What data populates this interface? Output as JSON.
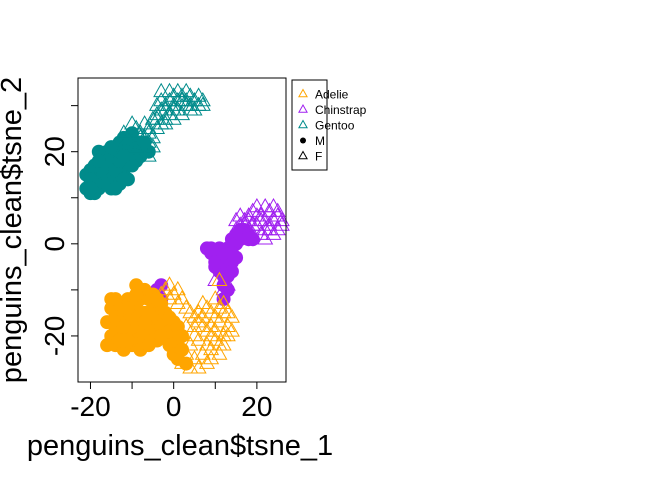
{
  "chart_data": {
    "type": "scatter",
    "title": "",
    "xlabel": "penguins_clean$tsne_1",
    "ylabel": "penguins_clean$tsne_2",
    "xlim": [
      -23,
      27
    ],
    "ylim": [
      -30,
      36
    ],
    "xticks": [
      -20,
      0,
      20
    ],
    "xtick_labels": [
      "-20",
      "0",
      "20"
    ],
    "yticks": [
      -20,
      0,
      20
    ],
    "ytick_labels": [
      "-20",
      "0",
      "20"
    ],
    "grid": false,
    "legend_position": "right",
    "legend": [
      {
        "label": "Adelie",
        "symbol": "triangle",
        "color": "#FFA500"
      },
      {
        "label": "Chinstrap",
        "symbol": "triangle",
        "color": "#A020F0"
      },
      {
        "label": "Gentoo",
        "symbol": "triangle",
        "color": "#008B8B"
      },
      {
        "label": "M",
        "symbol": "circle",
        "color": "#000000"
      },
      {
        "label": "F",
        "symbol": "triangle",
        "color": "#000000"
      }
    ],
    "colors": {
      "Adelie": "#FFA500",
      "Chinstrap": "#A020F0",
      "Gentoo": "#008B8B"
    },
    "series": [
      {
        "name": "Gentoo",
        "group": "M",
        "shape": "circle",
        "color": "#008B8B",
        "points": [
          [
            -20,
            11
          ],
          [
            -20,
            13
          ],
          [
            -21,
            15
          ],
          [
            -20,
            16
          ],
          [
            -19,
            14
          ],
          [
            -18,
            12
          ],
          [
            -18,
            15
          ],
          [
            -17,
            13
          ],
          [
            -17,
            17
          ],
          [
            -16,
            15
          ],
          [
            -15,
            12
          ],
          [
            -15,
            16
          ],
          [
            -15,
            19
          ],
          [
            -14,
            14
          ],
          [
            -14,
            18
          ],
          [
            -13,
            13
          ],
          [
            -13,
            20
          ],
          [
            -12,
            16
          ],
          [
            -12,
            18
          ],
          [
            -11,
            21
          ],
          [
            -11,
            14
          ],
          [
            -10,
            19
          ],
          [
            -10,
            22
          ],
          [
            -9,
            20
          ],
          [
            -13,
            22
          ],
          [
            -16,
            20
          ],
          [
            -18,
            20
          ],
          [
            -17,
            19
          ],
          [
            -12,
            21
          ],
          [
            -11,
            17
          ],
          [
            -10,
            20
          ],
          [
            -9,
            22
          ],
          [
            -8,
            21
          ],
          [
            -8,
            19
          ],
          [
            -6,
            20
          ],
          [
            -7,
            22
          ],
          [
            -14,
            21
          ],
          [
            -12,
            23
          ],
          [
            -10,
            24
          ],
          [
            -19,
            17
          ],
          [
            -20,
            14
          ],
          [
            -21,
            12
          ],
          [
            -17,
            16
          ],
          [
            -15,
            14
          ],
          [
            -13,
            16
          ],
          [
            -16,
            18
          ],
          [
            -14,
            16
          ],
          [
            -12,
            14
          ],
          [
            -11,
            19
          ],
          [
            -9,
            18
          ],
          [
            -8,
            22
          ],
          [
            -13,
            18
          ],
          [
            -15,
            21
          ],
          [
            -18,
            18
          ],
          [
            -19,
            11
          ],
          [
            -20,
            12
          ],
          [
            -16,
            13
          ],
          [
            -14,
            12
          ],
          [
            -10,
            17
          ],
          [
            -12,
            19
          ]
        ]
      },
      {
        "name": "Gentoo",
        "group": "F",
        "shape": "triangle",
        "color": "#008B8B",
        "points": [
          [
            -10,
            22
          ],
          [
            -8,
            24
          ],
          [
            -7,
            26
          ],
          [
            -6,
            25
          ],
          [
            -5,
            27
          ],
          [
            -4,
            28
          ],
          [
            -3,
            29
          ],
          [
            -2,
            30
          ],
          [
            -1,
            31
          ],
          [
            0,
            32
          ],
          [
            1,
            33
          ],
          [
            2,
            32
          ],
          [
            3,
            31
          ],
          [
            4,
            30
          ],
          [
            5,
            29
          ],
          [
            6,
            30
          ],
          [
            7,
            31
          ],
          [
            -4,
            25
          ],
          [
            -2,
            26
          ],
          [
            0,
            27
          ],
          [
            2,
            28
          ],
          [
            3,
            30
          ],
          [
            -6,
            22
          ],
          [
            -5,
            23
          ],
          [
            -3,
            26
          ],
          [
            -1,
            28
          ],
          [
            1,
            29
          ],
          [
            4,
            32
          ],
          [
            5,
            31
          ],
          [
            -8,
            20
          ],
          [
            -9,
            21
          ],
          [
            -6,
            24
          ],
          [
            -4,
            27
          ],
          [
            -2,
            29
          ],
          [
            0,
            30
          ],
          [
            2,
            31
          ],
          [
            -3,
            31
          ],
          [
            -1,
            33
          ],
          [
            1,
            31
          ],
          [
            -7,
            23
          ],
          [
            -5,
            21
          ],
          [
            -6,
            19
          ],
          [
            -4,
            30
          ],
          [
            6,
            32
          ],
          [
            -9,
            25
          ],
          [
            -11,
            23
          ],
          [
            -12,
            24
          ],
          [
            -10,
            26
          ],
          [
            -8,
            23
          ],
          [
            -3,
            33
          ],
          [
            3,
            33
          ],
          [
            0,
            29
          ],
          [
            -2,
            27
          ],
          [
            4,
            29
          ],
          [
            7,
            30
          ]
        ]
      },
      {
        "name": "Chinstrap",
        "group": "M",
        "shape": "circle",
        "color": "#A020F0",
        "points": [
          [
            8,
            -1
          ],
          [
            9,
            -2
          ],
          [
            10,
            -3
          ],
          [
            10,
            -5
          ],
          [
            11,
            -6
          ],
          [
            12,
            -4
          ],
          [
            13,
            -3
          ],
          [
            13,
            -1
          ],
          [
            14,
            0
          ],
          [
            14,
            1
          ],
          [
            15,
            2
          ],
          [
            16,
            3
          ],
          [
            17,
            3
          ],
          [
            18,
            2
          ],
          [
            19,
            1
          ],
          [
            12,
            -7
          ],
          [
            12,
            -9
          ],
          [
            13,
            -10
          ],
          [
            12,
            -12
          ],
          [
            13,
            -5
          ],
          [
            11,
            -1
          ],
          [
            10,
            -2
          ],
          [
            16,
            1
          ],
          [
            15,
            0
          ],
          [
            14,
            -2
          ],
          [
            -3,
            -9
          ],
          [
            -4,
            -10
          ],
          [
            -3,
            -12
          ],
          [
            14,
            -4
          ],
          [
            11,
            -3
          ],
          [
            17,
            2
          ],
          [
            15,
            -3
          ],
          [
            16,
            2
          ],
          [
            18,
            1
          ],
          [
            9,
            -1
          ],
          [
            13,
            -7
          ],
          [
            10,
            -4
          ],
          [
            12,
            -2
          ],
          [
            14,
            -6
          ]
        ]
      },
      {
        "name": "Chinstrap",
        "group": "F",
        "shape": "triangle",
        "color": "#A020F0",
        "points": [
          [
            15,
            3
          ],
          [
            16,
            4
          ],
          [
            17,
            5
          ],
          [
            18,
            6
          ],
          [
            19,
            7
          ],
          [
            20,
            8
          ],
          [
            21,
            6
          ],
          [
            22,
            5
          ],
          [
            23,
            4
          ],
          [
            24,
            5
          ],
          [
            25,
            6
          ],
          [
            26,
            5
          ],
          [
            22,
            8
          ],
          [
            24,
            8
          ],
          [
            20,
            4
          ],
          [
            21,
            2
          ],
          [
            22,
            1
          ],
          [
            23,
            3
          ],
          [
            19,
            4
          ],
          [
            18,
            3
          ],
          [
            25,
            3
          ],
          [
            24,
            2
          ],
          [
            21,
            5
          ],
          [
            23,
            7
          ],
          [
            20,
            6
          ],
          [
            17,
            4
          ],
          [
            15,
            5
          ],
          [
            19,
            2
          ],
          [
            22,
            3
          ],
          [
            26,
            4
          ],
          [
            16,
            6
          ],
          [
            18,
            5
          ],
          [
            25,
            7
          ],
          [
            12,
            -10
          ],
          [
            10,
            -8
          ],
          [
            13,
            -9
          ]
        ]
      },
      {
        "name": "Adelie",
        "group": "M",
        "shape": "circle",
        "color": "#FFA500",
        "points": [
          [
            -16,
            -17
          ],
          [
            -15,
            -14
          ],
          [
            -14,
            -16
          ],
          [
            -14,
            -19
          ],
          [
            -13,
            -13
          ],
          [
            -13,
            -18
          ],
          [
            -12,
            -15
          ],
          [
            -12,
            -20
          ],
          [
            -11,
            -12
          ],
          [
            -11,
            -17
          ],
          [
            -10,
            -14
          ],
          [
            -10,
            -19
          ],
          [
            -10,
            -22
          ],
          [
            -9,
            -13
          ],
          [
            -9,
            -16
          ],
          [
            -9,
            -21
          ],
          [
            -8,
            -12
          ],
          [
            -8,
            -18
          ],
          [
            -8,
            -23
          ],
          [
            -7,
            -15
          ],
          [
            -7,
            -20
          ],
          [
            -6,
            -12
          ],
          [
            -6,
            -17
          ],
          [
            -6,
            -22
          ],
          [
            -5,
            -14
          ],
          [
            -5,
            -19
          ],
          [
            -4,
            -16
          ],
          [
            -4,
            -21
          ],
          [
            -3,
            -13
          ],
          [
            -3,
            -18
          ],
          [
            -2,
            -15
          ],
          [
            -2,
            -20
          ],
          [
            -1,
            -22
          ],
          [
            0,
            -24
          ],
          [
            1,
            -21
          ],
          [
            1,
            -25
          ],
          [
            2,
            -23
          ],
          [
            3,
            -26
          ],
          [
            0,
            -17
          ],
          [
            -1,
            -19
          ],
          [
            -15,
            -20
          ],
          [
            -16,
            -22
          ],
          [
            -14,
            -22
          ],
          [
            -12,
            -23
          ],
          [
            -11,
            -21
          ],
          [
            -7,
            -10
          ],
          [
            -8,
            -10
          ],
          [
            -9,
            -9
          ],
          [
            -5,
            -11
          ],
          [
            -4,
            -12
          ],
          [
            -13,
            -21
          ],
          [
            -12,
            -18
          ],
          [
            -10,
            -16
          ],
          [
            -7,
            -17
          ],
          [
            -6,
            -15
          ],
          [
            -5,
            -21
          ],
          [
            -3,
            -20
          ],
          [
            1,
            -18
          ],
          [
            -1,
            -16
          ],
          [
            -15,
            -12
          ],
          [
            -14,
            -12
          ],
          [
            -11,
            -14
          ],
          [
            -9,
            -11
          ],
          [
            2,
            -20
          ]
        ]
      },
      {
        "name": "Adelie",
        "group": "F",
        "shape": "triangle",
        "color": "#FFA500",
        "points": [
          [
            -3,
            -11
          ],
          [
            -2,
            -10
          ],
          [
            -1,
            -12
          ],
          [
            0,
            -11
          ],
          [
            1,
            -13
          ],
          [
            2,
            -12
          ],
          [
            3,
            -14
          ],
          [
            4,
            -15
          ],
          [
            5,
            -16
          ],
          [
            6,
            -17
          ],
          [
            7,
            -18
          ],
          [
            8,
            -19
          ],
          [
            9,
            -20
          ],
          [
            10,
            -21
          ],
          [
            11,
            -22
          ],
          [
            12,
            -20
          ],
          [
            13,
            -18
          ],
          [
            14,
            -16
          ],
          [
            12,
            -15
          ],
          [
            11,
            -14
          ],
          [
            10,
            -16
          ],
          [
            9,
            -15
          ],
          [
            8,
            -14
          ],
          [
            7,
            -13
          ],
          [
            6,
            -15
          ],
          [
            5,
            -20
          ],
          [
            4,
            -22
          ],
          [
            3,
            -24
          ],
          [
            5,
            -25
          ],
          [
            7,
            -24
          ],
          [
            9,
            -23
          ],
          [
            11,
            -24
          ],
          [
            8,
            -26
          ],
          [
            6,
            -27
          ],
          [
            4,
            -27
          ],
          [
            2,
            -26
          ],
          [
            10,
            -12
          ],
          [
            12,
            -13
          ],
          [
            13,
            -15
          ],
          [
            11,
            -17
          ],
          [
            9,
            -18
          ],
          [
            8,
            -22
          ],
          [
            6,
            -21
          ],
          [
            7,
            -16
          ],
          [
            10,
            -19
          ],
          [
            12,
            -22
          ],
          [
            1,
            -10
          ],
          [
            -1,
            -9
          ],
          [
            3,
            -18
          ],
          [
            11,
            -8
          ],
          [
            13,
            -20
          ],
          [
            5,
            -18
          ],
          [
            14,
            -19
          ],
          [
            9,
            -25
          ]
        ]
      }
    ]
  }
}
